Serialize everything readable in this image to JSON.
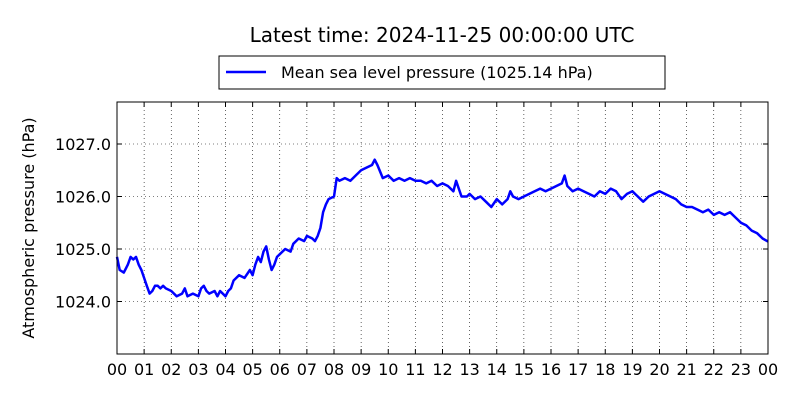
{
  "chart_data": {
    "type": "line",
    "title": "Latest time: 2024-11-25 00:00:00 UTC",
    "xlabel": "",
    "ylabel": "Atmospheric pressure (hPa)",
    "xlim": [
      0,
      24
    ],
    "ylim": [
      1023.0,
      1027.8
    ],
    "grid": true,
    "legend_position": "top-center",
    "x_tick_labels": [
      "00",
      "01",
      "02",
      "03",
      "04",
      "05",
      "06",
      "07",
      "08",
      "09",
      "10",
      "11",
      "12",
      "13",
      "14",
      "15",
      "16",
      "17",
      "18",
      "19",
      "20",
      "21",
      "22",
      "23",
      "00"
    ],
    "y_ticks": [
      1024.0,
      1025.0,
      1026.0,
      1027.0
    ],
    "y_tick_labels": [
      "1024.0",
      "1025.0",
      "1026.0",
      "1027.0"
    ],
    "series": [
      {
        "name": "Mean sea level pressure (1025.14 hPa)",
        "color": "#0000ff",
        "x": [
          0.0,
          0.1,
          0.25,
          0.4,
          0.5,
          0.6,
          0.7,
          0.8,
          0.9,
          1.0,
          1.1,
          1.2,
          1.3,
          1.4,
          1.5,
          1.6,
          1.7,
          1.8,
          2.0,
          2.2,
          2.4,
          2.5,
          2.6,
          2.8,
          3.0,
          3.1,
          3.2,
          3.3,
          3.4,
          3.6,
          3.7,
          3.8,
          4.0,
          4.1,
          4.2,
          4.3,
          4.5,
          4.7,
          4.9,
          5.0,
          5.1,
          5.2,
          5.3,
          5.4,
          5.5,
          5.6,
          5.7,
          5.8,
          5.9,
          6.0,
          6.2,
          6.4,
          6.5,
          6.7,
          6.9,
          7.0,
          7.2,
          7.3,
          7.4,
          7.5,
          7.6,
          7.7,
          7.8,
          8.0,
          8.1,
          8.2,
          8.4,
          8.6,
          8.8,
          8.9,
          9.0,
          9.2,
          9.4,
          9.5,
          9.6,
          9.8,
          10.0,
          10.2,
          10.4,
          10.6,
          10.8,
          11.0,
          11.2,
          11.4,
          11.6,
          11.8,
          12.0,
          12.2,
          12.4,
          12.5,
          12.7,
          12.9,
          13.0,
          13.2,
          13.4,
          13.6,
          13.8,
          14.0,
          14.2,
          14.4,
          14.5,
          14.6,
          14.8,
          15.0,
          15.2,
          15.4,
          15.6,
          15.8,
          16.0,
          16.2,
          16.4,
          16.5,
          16.6,
          16.8,
          17.0,
          17.2,
          17.4,
          17.6,
          17.8,
          18.0,
          18.2,
          18.4,
          18.6,
          18.8,
          19.0,
          19.2,
          19.4,
          19.6,
          19.8,
          20.0,
          20.2,
          20.4,
          20.6,
          20.8,
          21.0,
          21.2,
          21.4,
          21.6,
          21.8,
          22.0,
          22.2,
          22.4,
          22.6,
          22.8,
          23.0,
          23.2,
          23.4,
          23.6,
          23.8,
          24.0
        ],
        "y": [
          1024.85,
          1024.6,
          1024.55,
          1024.7,
          1024.85,
          1024.8,
          1024.85,
          1024.7,
          1024.6,
          1024.45,
          1024.3,
          1024.15,
          1024.2,
          1024.3,
          1024.3,
          1024.25,
          1024.3,
          1024.25,
          1024.2,
          1024.1,
          1024.15,
          1024.25,
          1024.1,
          1024.15,
          1024.1,
          1024.25,
          1024.3,
          1024.2,
          1024.15,
          1024.2,
          1024.1,
          1024.2,
          1024.1,
          1024.2,
          1024.25,
          1024.4,
          1024.5,
          1024.45,
          1024.6,
          1024.5,
          1024.7,
          1024.85,
          1024.75,
          1024.95,
          1025.05,
          1024.8,
          1024.6,
          1024.7,
          1024.85,
          1024.9,
          1025.0,
          1024.95,
          1025.1,
          1025.2,
          1025.15,
          1025.25,
          1025.2,
          1025.15,
          1025.25,
          1025.4,
          1025.7,
          1025.85,
          1025.95,
          1026.0,
          1026.35,
          1026.3,
          1026.35,
          1026.3,
          1026.4,
          1026.45,
          1026.5,
          1026.55,
          1026.6,
          1026.7,
          1026.6,
          1026.35,
          1026.4,
          1026.3,
          1026.35,
          1026.3,
          1026.35,
          1026.3,
          1026.3,
          1026.25,
          1026.3,
          1026.2,
          1026.25,
          1026.2,
          1026.1,
          1026.3,
          1026.0,
          1026.0,
          1026.05,
          1025.95,
          1026.0,
          1025.9,
          1025.8,
          1025.95,
          1025.85,
          1025.95,
          1026.1,
          1026.0,
          1025.95,
          1026.0,
          1026.05,
          1026.1,
          1026.15,
          1026.1,
          1026.15,
          1026.2,
          1026.25,
          1026.4,
          1026.2,
          1026.1,
          1026.15,
          1026.1,
          1026.05,
          1026.0,
          1026.1,
          1026.05,
          1026.15,
          1026.1,
          1025.95,
          1026.05,
          1026.1,
          1026.0,
          1025.9,
          1026.0,
          1026.05,
          1026.1,
          1026.05,
          1026.0,
          1025.95,
          1025.85,
          1025.8,
          1025.8,
          1025.75,
          1025.7,
          1025.75,
          1025.65,
          1025.7,
          1025.65,
          1025.7,
          1025.6,
          1025.5,
          1025.45,
          1025.35,
          1025.3,
          1025.2,
          1025.14
        ]
      }
    ]
  }
}
